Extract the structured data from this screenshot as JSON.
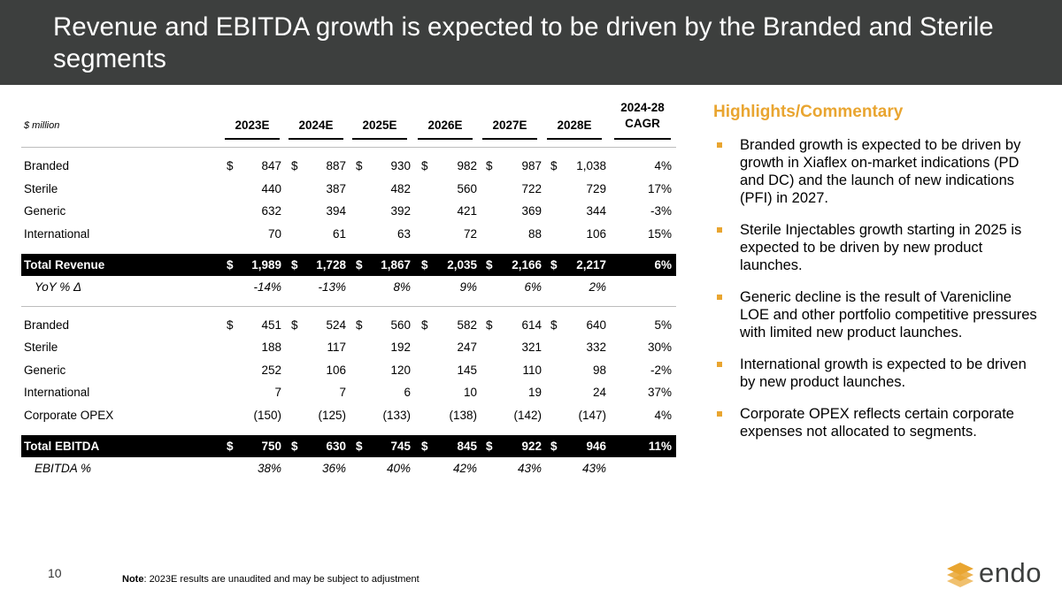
{
  "title": "Revenue and EBITDA growth is expected to be driven by the Branded and Sterile segments",
  "table": {
    "unit": "$ million",
    "years": [
      "2023E",
      "2024E",
      "2025E",
      "2026E",
      "2027E",
      "2028E"
    ],
    "cagr_header_1": "2024-28",
    "cagr_header_2": "CAGR",
    "currency": "$",
    "revenue_rows": [
      {
        "label": "Branded",
        "values": [
          "847",
          "887",
          "930",
          "982",
          "987",
          "1,038"
        ],
        "cagr": "4%",
        "dollar": true
      },
      {
        "label": "Sterile",
        "values": [
          "440",
          "387",
          "482",
          "560",
          "722",
          "729"
        ],
        "cagr": "17%",
        "dollar": false
      },
      {
        "label": "Generic",
        "values": [
          "632",
          "394",
          "392",
          "421",
          "369",
          "344"
        ],
        "cagr": "-3%",
        "dollar": false
      },
      {
        "label": "International",
        "values": [
          "70",
          "61",
          "63",
          "72",
          "88",
          "106"
        ],
        "cagr": "15%",
        "dollar": false
      }
    ],
    "total_revenue": {
      "label": "Total Revenue",
      "values": [
        "1,989",
        "1,728",
        "1,867",
        "2,035",
        "2,166",
        "2,217"
      ],
      "cagr": "6%"
    },
    "yoy": {
      "label": "YoY % Δ",
      "values": [
        "-14%",
        "-13%",
        "8%",
        "9%",
        "6%",
        "2%"
      ]
    },
    "ebitda_rows": [
      {
        "label": "Branded",
        "values": [
          "451",
          "524",
          "560",
          "582",
          "614",
          "640"
        ],
        "cagr": "5%",
        "dollar": true
      },
      {
        "label": "Sterile",
        "values": [
          "188",
          "117",
          "192",
          "247",
          "321",
          "332"
        ],
        "cagr": "30%",
        "dollar": false
      },
      {
        "label": "Generic",
        "values": [
          "252",
          "106",
          "120",
          "145",
          "110",
          "98"
        ],
        "cagr": "-2%",
        "dollar": false
      },
      {
        "label": "International",
        "values": [
          "7",
          "7",
          "6",
          "10",
          "19",
          "24"
        ],
        "cagr": "37%",
        "dollar": false
      },
      {
        "label": "Corporate OPEX",
        "values": [
          "(150)",
          "(125)",
          "(133)",
          "(138)",
          "(142)",
          "(147)"
        ],
        "cagr": "4%",
        "dollar": false
      }
    ],
    "total_ebitda": {
      "label": "Total EBITDA",
      "values": [
        "750",
        "630",
        "745",
        "845",
        "922",
        "946"
      ],
      "cagr": "11%"
    },
    "ebitda_pct": {
      "label": "EBITDA %",
      "values": [
        "38%",
        "36%",
        "40%",
        "42%",
        "43%",
        "43%"
      ]
    }
  },
  "highlights": {
    "heading": "Highlights/Commentary",
    "items": [
      "Branded growth is expected to be driven by growth in Xiaflex on-market indications (PD and DC) and the launch of new indications (PFI) in 2027.",
      "Sterile Injectables growth starting in 2025 is expected to be driven by new product launches.",
      "Generic decline is the result of Varenicline LOE and other portfolio competitive pressures with limited new product launches.",
      "International growth is expected to be driven by new product launches.",
      "Corporate OPEX reflects certain corporate expenses not allocated to segments."
    ]
  },
  "page_number": "10",
  "note_label": "Note",
  "note_text": ": 2023E results are unaudited and may be subject to adjustment",
  "logo_text": "endo",
  "colors": {
    "header_bg": "#3d3f3e",
    "accent": "#e9a530",
    "total_row_bg": "#000000"
  }
}
